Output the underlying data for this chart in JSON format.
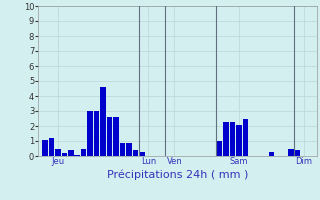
{
  "xlabel": "Précipitations 24h ( mm )",
  "background_color": "#d4efef",
  "grid_color": "#b8d8d8",
  "bar_color": "#0000cc",
  "ylim": [
    0,
    10
  ],
  "yticks": [
    0,
    1,
    2,
    3,
    4,
    5,
    6,
    7,
    8,
    9,
    10
  ],
  "bar_values": [
    1.1,
    1.2,
    0.5,
    0.2,
    0.4,
    0.1,
    0.5,
    3.0,
    3.0,
    4.6,
    2.6,
    2.6,
    0.9,
    0.9,
    0.4,
    0.3,
    0.0,
    0.0,
    0.0,
    0.0,
    0.0,
    0.0,
    0.0,
    0.0,
    0.0,
    0.0,
    0.0,
    1.0,
    2.3,
    2.3,
    2.1,
    2.5,
    0.0,
    0.0,
    0.0,
    0.3,
    0.0,
    0.0,
    0.5,
    0.4,
    0.0,
    0.0
  ],
  "day_labels": [
    "Jeu",
    "Lun",
    "Ven",
    "Sam",
    "Dim"
  ],
  "day_positions": [
    2,
    16,
    20,
    30,
    40
  ],
  "vline_positions": [
    14.5,
    18.5,
    26.5,
    38.5
  ],
  "vline_color": "#607080",
  "tick_fontsize": 6,
  "xlabel_fontsize": 8,
  "day_label_color": "#3333bb",
  "ytick_color": "#333333"
}
